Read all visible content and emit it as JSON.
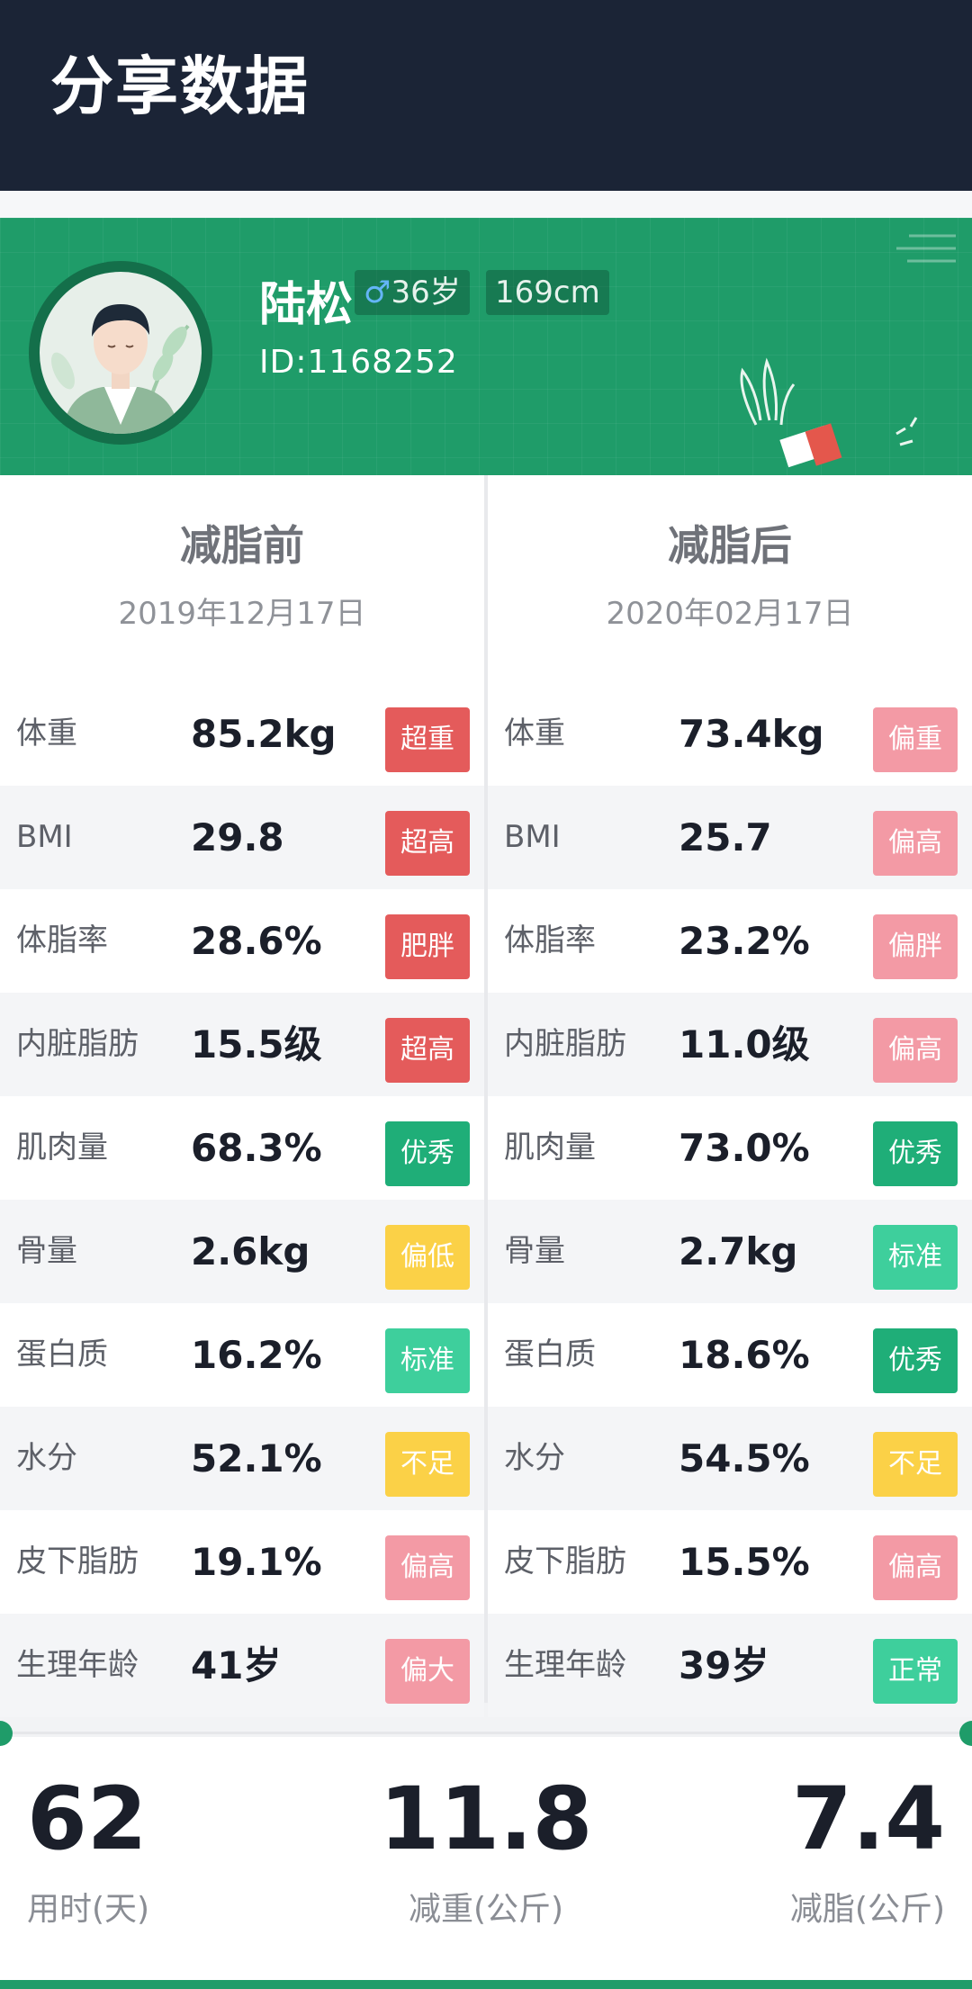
{
  "header": {
    "title": "分享数据"
  },
  "profile": {
    "name": "陆松",
    "gender_symbol": "♂",
    "age": "36岁",
    "height": "169cm",
    "id": "ID:1168252"
  },
  "colors": {
    "red": "#e45b5b",
    "pink": "#f39aa5",
    "green": "#1fae78",
    "teal": "#3ecf9c",
    "yellow": "#fbd147",
    "brand": "#1f9c69"
  },
  "before": {
    "title": "减脂前",
    "date": "2019年12月17日",
    "rows": [
      {
        "label": "体重",
        "value": "85.2kg",
        "status": "超重",
        "color": "#e45b5b"
      },
      {
        "label": "BMI",
        "value": "29.8",
        "status": "超高",
        "color": "#e45b5b"
      },
      {
        "label": "体脂率",
        "value": "28.6%",
        "status": "肥胖",
        "color": "#e45b5b"
      },
      {
        "label": "内脏脂肪",
        "value": "15.5级",
        "status": "超高",
        "color": "#e45b5b"
      },
      {
        "label": "肌肉量",
        "value": "68.3%",
        "status": "优秀",
        "color": "#1fae78"
      },
      {
        "label": "骨量",
        "value": "2.6kg",
        "status": "偏低",
        "color": "#fbd147"
      },
      {
        "label": "蛋白质",
        "value": "16.2%",
        "status": "标准",
        "color": "#3ecf9c"
      },
      {
        "label": "水分",
        "value": "52.1%",
        "status": "不足",
        "color": "#fbd147"
      },
      {
        "label": "皮下脂肪",
        "value": "19.1%",
        "status": "偏高",
        "color": "#f39aa5"
      },
      {
        "label": "生理年龄",
        "value": "41岁",
        "status": "偏大",
        "color": "#f39aa5"
      }
    ]
  },
  "after": {
    "title": "减脂后",
    "date": "2020年02月17日",
    "rows": [
      {
        "label": "体重",
        "value": "73.4kg",
        "status": "偏重",
        "color": "#f39aa5"
      },
      {
        "label": "BMI",
        "value": "25.7",
        "status": "偏高",
        "color": "#f39aa5"
      },
      {
        "label": "体脂率",
        "value": "23.2%",
        "status": "偏胖",
        "color": "#f39aa5"
      },
      {
        "label": "内脏脂肪",
        "value": "11.0级",
        "status": "偏高",
        "color": "#f39aa5"
      },
      {
        "label": "肌肉量",
        "value": "73.0%",
        "status": "优秀",
        "color": "#1fae78"
      },
      {
        "label": "骨量",
        "value": "2.7kg",
        "status": "标准",
        "color": "#3ecf9c"
      },
      {
        "label": "蛋白质",
        "value": "18.6%",
        "status": "优秀",
        "color": "#1fae78"
      },
      {
        "label": "水分",
        "value": "54.5%",
        "status": "不足",
        "color": "#fbd147"
      },
      {
        "label": "皮下脂肪",
        "value": "15.5%",
        "status": "偏高",
        "color": "#f39aa5"
      },
      {
        "label": "生理年龄",
        "value": "39岁",
        "status": "正常",
        "color": "#3ecf9c"
      }
    ]
  },
  "summary": [
    {
      "value": "62",
      "label": "用时(天)"
    },
    {
      "value": "11.8",
      "label": "减重(公斤)"
    },
    {
      "value": "7.4",
      "label": "减脂(公斤)"
    }
  ]
}
